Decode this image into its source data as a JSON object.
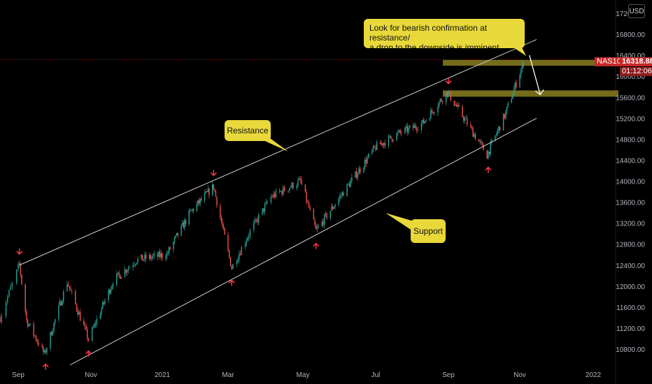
{
  "currency": "USD",
  "symbol_tag": "NAS100",
  "last_price": "16318.88",
  "countdown": "01:12:06",
  "annotations": {
    "top": [
      "Look for bearish confirmation at resistance/",
      "a drop to the downside is imminent"
    ],
    "resistance": "Resistance",
    "support": "Support"
  },
  "colors": {
    "background": "#000000",
    "up": "#26a69a",
    "down": "#ef5350",
    "callout": "#e8d83a",
    "zone": "#8a7f1f",
    "arrow_red": "#f23645",
    "channel_line": "#cfcfcf"
  },
  "chart_data": {
    "type": "candlestick",
    "title": "",
    "x_ticks": [
      "Sep",
      "Nov",
      "2021",
      "Mar",
      "May",
      "Jul",
      "Sep",
      "Nov",
      "2022"
    ],
    "y_ticks": [
      "10800.00",
      "11200.00",
      "11600.00",
      "12000.00",
      "12400.00",
      "12800.00",
      "13200.00",
      "13600.00",
      "14000.00",
      "14400.00",
      "14800.00",
      "15200.00",
      "15600.00",
      "16000.00",
      "16400.00",
      "16800.00",
      "17200.00"
    ],
    "ylim": [
      10600,
      17300
    ],
    "price_path": [
      {
        "date": "2020-08-20",
        "close": 11400
      },
      {
        "date": "2020-09-02",
        "close": 12420
      },
      {
        "date": "2020-09-08",
        "close": 11350
      },
      {
        "date": "2020-09-23",
        "close": 10700
      },
      {
        "date": "2020-10-12",
        "close": 12080
      },
      {
        "date": "2020-10-30",
        "close": 10980
      },
      {
        "date": "2020-11-20",
        "close": 12100
      },
      {
        "date": "2020-12-10",
        "close": 12500
      },
      {
        "date": "2021-01-05",
        "close": 12600
      },
      {
        "date": "2021-01-26",
        "close": 13400
      },
      {
        "date": "2021-02-16",
        "close": 13900
      },
      {
        "date": "2021-03-04",
        "close": 12350
      },
      {
        "date": "2021-03-18",
        "close": 13000
      },
      {
        "date": "2021-04-05",
        "close": 13700
      },
      {
        "date": "2021-04-29",
        "close": 14000
      },
      {
        "date": "2021-05-12",
        "close": 13050
      },
      {
        "date": "2021-06-01",
        "close": 13700
      },
      {
        "date": "2021-07-01",
        "close": 14650
      },
      {
        "date": "2021-07-20",
        "close": 14900
      },
      {
        "date": "2021-08-10",
        "close": 15100
      },
      {
        "date": "2021-08-31",
        "close": 15700
      },
      {
        "date": "2021-09-20",
        "close": 15000
      },
      {
        "date": "2021-10-04",
        "close": 14500
      },
      {
        "date": "2021-10-20",
        "close": 15300
      },
      {
        "date": "2021-11-05",
        "close": 16318.88
      }
    ],
    "channel": {
      "resistance": [
        {
          "date": "2020-09-02",
          "value": 12400
        },
        {
          "date": "2021-11-15",
          "value": 16700
        }
      ],
      "support": [
        {
          "date": "2020-09-20",
          "value": 10500
        },
        {
          "date": "2021-11-15",
          "value": 15200
        }
      ]
    },
    "zones": [
      {
        "date_from": "2021-09-01",
        "date_to": "2021-12-10",
        "low": 16200,
        "high": 16310
      },
      {
        "date_from": "2021-09-01",
        "date_to": "2021-12-10",
        "low": 15610,
        "high": 15730
      }
    ],
    "red_arrows_down": [
      {
        "date": "2020-09-02",
        "value": 12450
      },
      {
        "date": "2021-02-16",
        "value": 13950
      },
      {
        "date": "2021-09-01",
        "value": 15700
      }
    ],
    "red_arrows_up": [
      {
        "date": "2020-09-24",
        "value": 10700
      },
      {
        "date": "2020-10-30",
        "value": 10950
      },
      {
        "date": "2021-03-04",
        "value": 12300
      },
      {
        "date": "2021-05-12",
        "value": 13000
      },
      {
        "date": "2021-10-05",
        "value": 14450
      }
    ],
    "projection": [
      {
        "date": "2021-11-09",
        "value": 16400
      },
      {
        "date": "2021-11-18",
        "value": 15650
      }
    ],
    "current_price": 16318.88
  }
}
